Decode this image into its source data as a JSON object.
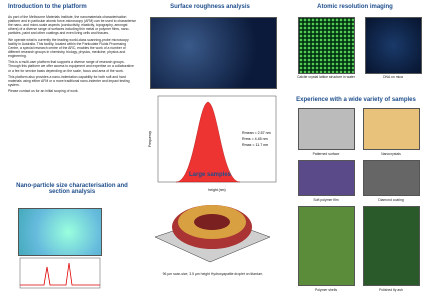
{
  "intro": {
    "title": "Introduction to the platform",
    "paragraphs": [
      "As part of the Melbourne Materials Institute, the nanomaterials characterisation platform and in particular atomic force-microscopy (AFM) can be used to characterise the nano- and micro-scale aspects (conductivity, elasticity, topography, amongst others) of a diverse range of surfaces including thin metal or polymer films, nano-particles, paint and other coatings and even living cells and tissues.",
      "We operate what is currently the leading world-class scanning-probe microscopy facility in Australia. This facility, located within the Particulate Fluids Processing Centre, a special research centre of the ARC, enables the work of a number of different research groups in chemistry, biology, physics, medicine, physics and engineering.",
      "This is a multi-user platform that supports a diverse range of research groups. Through this platform we offer access to equipment and expertise on a collaborative or a fee for service basis depending on the scale, focus and area of the work.",
      "This platform also provides a nano-indentation capability for both soft and hard materials using either AFM or a more traditional nano-indenter and impact testing system.",
      "Please contact us for an initial scoping of work."
    ]
  },
  "nano": {
    "title": "Nano-particle size characterisation and section analysis"
  },
  "roughness": {
    "title": "Surface roughness analysis",
    "stats": [
      "Rmean = 2.57 nm",
      "Rrms = 4.45 nm",
      "Rmax = 11.7 nm"
    ],
    "y_label": "Frequency",
    "x_label": "height (nm)"
  },
  "large": {
    "title": "Large samples",
    "caption": "96 µm scan-size, 3.5 µm height Hydroxyapatite droplet on titanium"
  },
  "atomic": {
    "title": "Atomic resolution imaging",
    "captions": [
      "Calcite crystal lattice structure in water",
      "DNA on mica"
    ]
  },
  "experience": {
    "title": "Experience with a wide variety of samples",
    "captions": [
      "Patterned surface",
      "Nanocrystals",
      "Soft polymer film",
      "Diamond coating",
      "Polymer shells",
      "Polished fly ash"
    ]
  }
}
